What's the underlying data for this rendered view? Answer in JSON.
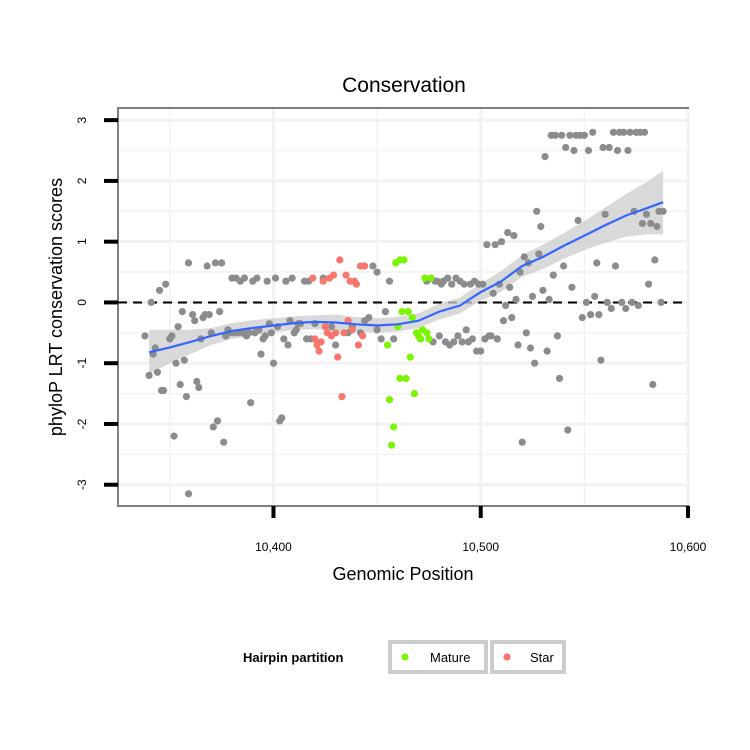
{
  "chart_data": {
    "type": "scatter",
    "title": "Conservation",
    "xlabel": "Genomic Position",
    "ylabel": "phyloP LRT conservation scores",
    "xlim": [
      10325,
      10600
    ],
    "ylim": [
      -3.35,
      3.2
    ],
    "xticks": [
      {
        "value": 10400,
        "label": "10,400"
      },
      {
        "value": 10500,
        "label": "10,500"
      },
      {
        "value": 10600,
        "label": "10,600"
      }
    ],
    "yticks": [
      {
        "value": 3,
        "label": "3"
      },
      {
        "value": 2,
        "label": "2"
      },
      {
        "value": 1,
        "label": "1"
      },
      {
        "value": 0,
        "label": "0"
      },
      {
        "value": -1,
        "label": "-1"
      },
      {
        "value": -2,
        "label": "-2"
      },
      {
        "value": -3,
        "label": "-3"
      }
    ],
    "reference_line": {
      "y": 0,
      "style": "dashed"
    },
    "grid": true,
    "legend": {
      "title": "Hairpin partition",
      "placement": "bottom",
      "entries": [
        {
          "label": "Mature",
          "color": "#7cf500"
        },
        {
          "label": "Star",
          "color": "#f8766d"
        }
      ]
    },
    "colors": {
      "other": "#8c8c8c",
      "Mature": "#7cf500",
      "Star": "#f8766d",
      "smooth": "#3366ff",
      "ribbon": "#cccccc"
    },
    "series": [
      {
        "name": "Other",
        "color": "#8c8c8c",
        "points": [
          [
            10338,
            -0.55
          ],
          [
            10340,
            -1.2
          ],
          [
            10341,
            0.0
          ],
          [
            10342,
            -0.85
          ],
          [
            10343,
            -0.75
          ],
          [
            10344,
            -1.15
          ],
          [
            10345,
            0.2
          ],
          [
            10346,
            -1.45
          ],
          [
            10347,
            -1.45
          ],
          [
            10348,
            0.3
          ],
          [
            10350,
            -0.6
          ],
          [
            10351,
            -0.55
          ],
          [
            10352,
            -2.2
          ],
          [
            10353,
            -1.0
          ],
          [
            10354,
            -0.4
          ],
          [
            10355,
            -1.35
          ],
          [
            10356,
            -0.15
          ],
          [
            10357,
            -0.95
          ],
          [
            10358,
            -1.55
          ],
          [
            10359,
            0.65
          ],
          [
            10359,
            -3.15
          ],
          [
            10361,
            -0.2
          ],
          [
            10362,
            -0.3
          ],
          [
            10363,
            -1.3
          ],
          [
            10364,
            -1.4
          ],
          [
            10365,
            -0.6
          ],
          [
            10366,
            -0.25
          ],
          [
            10367,
            -0.2
          ],
          [
            10368,
            0.6
          ],
          [
            10369,
            -0.2
          ],
          [
            10370,
            -0.5
          ],
          [
            10371,
            -2.05
          ],
          [
            10372,
            0.65
          ],
          [
            10373,
            -1.95
          ],
          [
            10374,
            -0.15
          ],
          [
            10375,
            0.65
          ],
          [
            10376,
            -2.3
          ],
          [
            10377,
            -0.55
          ],
          [
            10378,
            -0.45
          ],
          [
            10379,
            -0.5
          ],
          [
            10380,
            0.4
          ],
          [
            10381,
            -0.5
          ],
          [
            10382,
            0.4
          ],
          [
            10383,
            -0.5
          ],
          [
            10384,
            0.35
          ],
          [
            10385,
            -0.5
          ],
          [
            10386,
            0.4
          ],
          [
            10387,
            -0.55
          ],
          [
            10388,
            -0.5
          ],
          [
            10389,
            -1.65
          ],
          [
            10390,
            0.35
          ],
          [
            10391,
            -0.5
          ],
          [
            10392,
            0.4
          ],
          [
            10393,
            -0.45
          ],
          [
            10394,
            -0.85
          ],
          [
            10395,
            -0.6
          ],
          [
            10396,
            -0.55
          ],
          [
            10397,
            0.35
          ],
          [
            10398,
            -0.35
          ],
          [
            10399,
            -0.5
          ],
          [
            10400,
            -1.0
          ],
          [
            10401,
            0.4
          ],
          [
            10402,
            -0.4
          ],
          [
            10403,
            -1.95
          ],
          [
            10404,
            -1.9
          ],
          [
            10405,
            -0.6
          ],
          [
            10406,
            0.35
          ],
          [
            10407,
            -0.7
          ],
          [
            10408,
            -0.3
          ],
          [
            10409,
            0.4
          ],
          [
            10410,
            -0.5
          ],
          [
            10411,
            -0.45
          ],
          [
            10412,
            -0.35
          ],
          [
            10413,
            -0.35
          ],
          [
            10415,
            0.35
          ],
          [
            10416,
            -0.6
          ],
          [
            10417,
            0.35
          ],
          [
            10418,
            -0.6
          ],
          [
            10420,
            -0.35
          ],
          [
            10424,
            0.4
          ],
          [
            10428,
            -0.4
          ],
          [
            10430,
            -0.7
          ],
          [
            10436,
            -0.5
          ],
          [
            10438,
            -0.4
          ],
          [
            10442,
            -0.5
          ],
          [
            10444,
            -0.3
          ],
          [
            10446,
            -0.25
          ],
          [
            10448,
            0.6
          ],
          [
            10450,
            0.5
          ],
          [
            10450,
            -0.45
          ],
          [
            10452,
            -0.6
          ],
          [
            10454,
            -0.15
          ],
          [
            10456,
            0.35
          ],
          [
            10458,
            -0.6
          ],
          [
            10474,
            0.35
          ],
          [
            10476,
            0.4
          ],
          [
            10477,
            -0.65
          ],
          [
            10478,
            0.35
          ],
          [
            10479,
            0.35
          ],
          [
            10480,
            -0.55
          ],
          [
            10481,
            0.3
          ],
          [
            10482,
            0.35
          ],
          [
            10483,
            -0.65
          ],
          [
            10484,
            0.4
          ],
          [
            10485,
            -0.7
          ],
          [
            10486,
            0.3
          ],
          [
            10487,
            -0.65
          ],
          [
            10488,
            0.4
          ],
          [
            10489,
            -0.55
          ],
          [
            10490,
            0.35
          ],
          [
            10491,
            -0.65
          ],
          [
            10492,
            0.3
          ],
          [
            10493,
            -0.45
          ],
          [
            10494,
            -0.65
          ],
          [
            10495,
            0.3
          ],
          [
            10496,
            -0.6
          ],
          [
            10497,
            0.35
          ],
          [
            10498,
            -0.8
          ],
          [
            10499,
            0.3
          ],
          [
            10500,
            -0.8
          ],
          [
            10501,
            0.3
          ],
          [
            10502,
            -0.6
          ],
          [
            10503,
            0.95
          ],
          [
            10504,
            -0.55
          ],
          [
            10505,
            -0.55
          ],
          [
            10506,
            0.15
          ],
          [
            10507,
            0.95
          ],
          [
            10508,
            -0.6
          ],
          [
            10509,
            0.3
          ],
          [
            10510,
            1.0
          ],
          [
            10511,
            -0.3
          ],
          [
            10512,
            -0.05
          ],
          [
            10513,
            1.15
          ],
          [
            10514,
            0.25
          ],
          [
            10515,
            -0.25
          ],
          [
            10516,
            1.1
          ],
          [
            10517,
            0.05
          ],
          [
            10518,
            -0.7
          ],
          [
            10519,
            0.5
          ],
          [
            10520,
            -2.3
          ],
          [
            10521,
            0.75
          ],
          [
            10522,
            -0.5
          ],
          [
            10523,
            0.65
          ],
          [
            10524,
            -0.75
          ],
          [
            10525,
            0.1
          ],
          [
            10526,
            -1.0
          ],
          [
            10527,
            1.5
          ],
          [
            10528,
            0.8
          ],
          [
            10529,
            1.25
          ],
          [
            10530,
            0.2
          ],
          [
            10531,
            2.4
          ],
          [
            10532,
            -0.8
          ],
          [
            10533,
            0.05
          ],
          [
            10534,
            2.75
          ],
          [
            10535,
            0.45
          ],
          [
            10536,
            2.75
          ],
          [
            10537,
            -0.55
          ],
          [
            10538,
            -1.25
          ],
          [
            10539,
            2.75
          ],
          [
            10540,
            0.6
          ],
          [
            10541,
            2.55
          ],
          [
            10542,
            -2.1
          ],
          [
            10543,
            2.75
          ],
          [
            10544,
            0.25
          ],
          [
            10545,
            2.5
          ],
          [
            10546,
            2.75
          ],
          [
            10547,
            1.35
          ],
          [
            10548,
            2.75
          ],
          [
            10549,
            -0.25
          ],
          [
            10550,
            2.75
          ],
          [
            10551,
            0.0
          ],
          [
            10552,
            2.5
          ],
          [
            10553,
            -0.2
          ],
          [
            10554,
            2.8
          ],
          [
            10555,
            0.1
          ],
          [
            10556,
            0.65
          ],
          [
            10557,
            -0.2
          ],
          [
            10558,
            -0.95
          ],
          [
            10559,
            2.55
          ],
          [
            10560,
            1.45
          ],
          [
            10561,
            0.0
          ],
          [
            10562,
            2.55
          ],
          [
            10563,
            -0.1
          ],
          [
            10564,
            2.8
          ],
          [
            10565,
            0.6
          ],
          [
            10566,
            2.5
          ],
          [
            10567,
            2.8
          ],
          [
            10568,
            0.0
          ],
          [
            10569,
            2.8
          ],
          [
            10570,
            -0.1
          ],
          [
            10571,
            2.5
          ],
          [
            10572,
            2.8
          ],
          [
            10573,
            0.0
          ],
          [
            10574,
            1.5
          ],
          [
            10575,
            2.8
          ],
          [
            10576,
            -0.05
          ],
          [
            10577,
            2.8
          ],
          [
            10578,
            1.3
          ],
          [
            10579,
            2.8
          ],
          [
            10580,
            1.45
          ],
          [
            10581,
            0.3
          ],
          [
            10582,
            1.3
          ],
          [
            10583,
            -1.35
          ],
          [
            10584,
            0.7
          ],
          [
            10585,
            1.25
          ],
          [
            10586,
            1.5
          ],
          [
            10587,
            0.0
          ],
          [
            10588,
            1.5
          ]
        ]
      },
      {
        "name": "Star",
        "color": "#f8766d",
        "points": [
          [
            10419,
            0.4
          ],
          [
            10420,
            -0.6
          ],
          [
            10421,
            -0.7
          ],
          [
            10422,
            -0.8
          ],
          [
            10423,
            -0.65
          ],
          [
            10424,
            0.35
          ],
          [
            10425,
            -0.4
          ],
          [
            10426,
            -0.5
          ],
          [
            10427,
            0.4
          ],
          [
            10428,
            -0.55
          ],
          [
            10429,
            0.45
          ],
          [
            10430,
            -0.5
          ],
          [
            10431,
            -0.9
          ],
          [
            10432,
            0.7
          ],
          [
            10433,
            -1.55
          ],
          [
            10434,
            -0.5
          ],
          [
            10435,
            0.45
          ],
          [
            10436,
            -0.3
          ],
          [
            10437,
            0.35
          ],
          [
            10438,
            -0.45
          ],
          [
            10439,
            0.35
          ],
          [
            10440,
            0.3
          ],
          [
            10441,
            -0.7
          ],
          [
            10442,
            0.6
          ],
          [
            10443,
            -0.55
          ],
          [
            10444,
            0.6
          ]
        ]
      },
      {
        "name": "Mature",
        "color": "#7cf500",
        "points": [
          [
            10455,
            -0.7
          ],
          [
            10456,
            -1.6
          ],
          [
            10457,
            -2.35
          ],
          [
            10458,
            -2.05
          ],
          [
            10459,
            0.65
          ],
          [
            10460,
            -0.4
          ],
          [
            10461,
            -1.25
          ],
          [
            10461,
            0.7
          ],
          [
            10462,
            -0.15
          ],
          [
            10463,
            0.7
          ],
          [
            10464,
            -1.25
          ],
          [
            10465,
            -0.15
          ],
          [
            10466,
            -0.9
          ],
          [
            10467,
            -0.25
          ],
          [
            10468,
            -1.5
          ],
          [
            10469,
            -0.5
          ],
          [
            10470,
            -0.55
          ],
          [
            10471,
            -0.6
          ],
          [
            10472,
            -0.45
          ],
          [
            10473,
            0.4
          ],
          [
            10474,
            -0.5
          ],
          [
            10475,
            -0.6
          ],
          [
            10476,
            0.4
          ]
        ]
      }
    ],
    "smooth": {
      "method": "loess",
      "x": [
        10340,
        10350,
        10360,
        10370,
        10380,
        10390,
        10400,
        10410,
        10420,
        10430,
        10440,
        10450,
        10460,
        10470,
        10480,
        10490,
        10500,
        10510,
        10520,
        10530,
        10540,
        10550,
        10560,
        10570,
        10580,
        10588
      ],
      "y": [
        -0.82,
        -0.74,
        -0.65,
        -0.55,
        -0.47,
        -0.42,
        -0.38,
        -0.34,
        -0.32,
        -0.33,
        -0.36,
        -0.38,
        -0.36,
        -0.3,
        -0.15,
        -0.05,
        0.17,
        0.35,
        0.6,
        0.75,
        0.93,
        1.1,
        1.27,
        1.43,
        1.55,
        1.65
      ],
      "ymin": [
        -1.18,
        -1.0,
        -0.85,
        -0.7,
        -0.6,
        -0.55,
        -0.5,
        -0.45,
        -0.44,
        -0.46,
        -0.48,
        -0.5,
        -0.48,
        -0.42,
        -0.28,
        -0.18,
        0.03,
        0.18,
        0.42,
        0.55,
        0.72,
        0.86,
        0.98,
        1.08,
        1.12,
        1.12
      ],
      "ymax": [
        -0.45,
        -0.45,
        -0.45,
        -0.42,
        -0.34,
        -0.29,
        -0.26,
        -0.23,
        -0.21,
        -0.2,
        -0.24,
        -0.26,
        -0.24,
        -0.18,
        -0.02,
        0.08,
        0.31,
        0.52,
        0.78,
        0.95,
        1.14,
        1.34,
        1.56,
        1.78,
        1.98,
        2.17
      ]
    }
  }
}
